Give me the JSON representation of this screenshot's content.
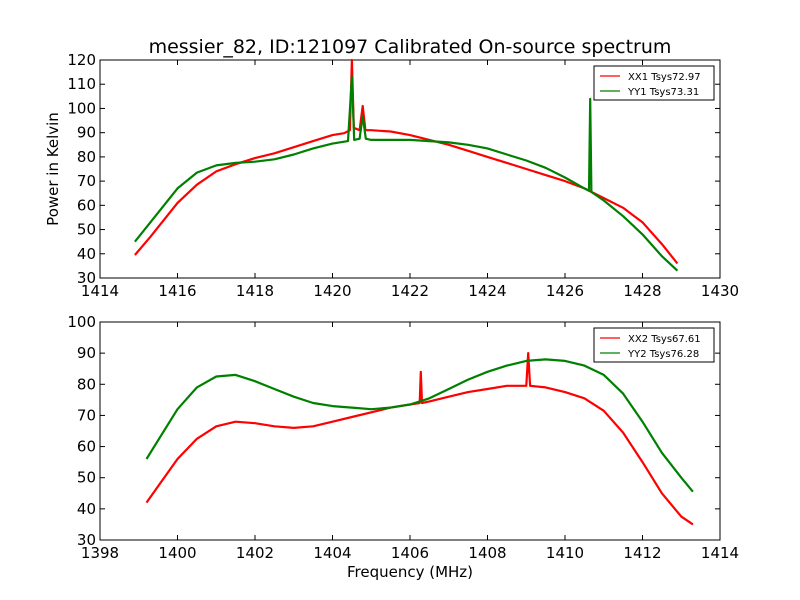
{
  "chart_data": [
    {
      "type": "line",
      "title": "messier_82, ID:121097 Calibrated On-source spectrum",
      "xlabel": "",
      "ylabel": "Power in Kelvin",
      "xlim": [
        1414,
        1430
      ],
      "ylim": [
        30,
        120
      ],
      "xticks": [
        1414,
        1416,
        1418,
        1420,
        1422,
        1424,
        1426,
        1428,
        1430
      ],
      "yticks": [
        30,
        40,
        50,
        60,
        70,
        80,
        90,
        100,
        110,
        120
      ],
      "grid": false,
      "legend_position": "top-right",
      "series": [
        {
          "name": "XX1 Tsys72.97",
          "color": "#ff0000",
          "x": [
            1414.9,
            1415.3,
            1415.7,
            1416.0,
            1416.5,
            1417.0,
            1417.5,
            1418.0,
            1418.5,
            1419.0,
            1419.5,
            1420.0,
            1420.3,
            1420.45,
            1420.5,
            1420.55,
            1420.7,
            1420.78,
            1420.85,
            1421.0,
            1421.5,
            1422.0,
            1422.5,
            1423.0,
            1423.5,
            1424.0,
            1424.5,
            1425.0,
            1425.5,
            1426.0,
            1426.5,
            1427.0,
            1427.5,
            1428.0,
            1428.5,
            1428.9
          ],
          "y": [
            39.5,
            47,
            55,
            61,
            68.5,
            74,
            77,
            79.5,
            81.5,
            84,
            86.5,
            89,
            89.8,
            91,
            120,
            92,
            91,
            101,
            91,
            91,
            90.5,
            89,
            87,
            85,
            82.5,
            80,
            77.5,
            75,
            72.5,
            70,
            67,
            63,
            59,
            53,
            44,
            36
          ]
        },
        {
          "name": "YY1 Tsys73.31",
          "color": "#008000",
          "x": [
            1414.9,
            1415.3,
            1415.7,
            1416.0,
            1416.5,
            1417.0,
            1417.5,
            1418.0,
            1418.5,
            1419.0,
            1419.5,
            1420.0,
            1420.4,
            1420.5,
            1420.56,
            1420.7,
            1420.78,
            1420.86,
            1421.0,
            1421.5,
            1422.0,
            1422.5,
            1423.0,
            1423.5,
            1424.0,
            1424.5,
            1425.0,
            1425.5,
            1426.0,
            1426.5,
            1426.62,
            1426.65,
            1426.68,
            1427.0,
            1427.5,
            1428.0,
            1428.5,
            1428.9
          ],
          "y": [
            45,
            53,
            61,
            67,
            73.5,
            76.5,
            77.5,
            78,
            79,
            81,
            83.5,
            85.5,
            86.5,
            113,
            87,
            87.5,
            97,
            87.5,
            87,
            87,
            87,
            86.5,
            86,
            85,
            83.5,
            81,
            78.5,
            75.5,
            71.5,
            67,
            66,
            104,
            65.5,
            62,
            55.5,
            48,
            39,
            33
          ]
        }
      ]
    },
    {
      "type": "line",
      "title": "",
      "xlabel": "Frequency (MHz)",
      "ylabel": "",
      "xlim": [
        1398,
        1414
      ],
      "ylim": [
        30,
        100
      ],
      "xticks": [
        1398,
        1400,
        1402,
        1404,
        1406,
        1408,
        1410,
        1412,
        1414
      ],
      "yticks": [
        30,
        40,
        50,
        60,
        70,
        80,
        90,
        100
      ],
      "grid": false,
      "legend_position": "top-right",
      "series": [
        {
          "name": "XX2 Tsys67.61",
          "color": "#ff0000",
          "x": [
            1399.2,
            1399.6,
            1400.0,
            1400.5,
            1401.0,
            1401.5,
            1402.0,
            1402.5,
            1403.0,
            1403.5,
            1404.0,
            1404.5,
            1405.0,
            1405.5,
            1406.0,
            1406.25,
            1406.28,
            1406.31,
            1406.5,
            1407.0,
            1407.5,
            1408.0,
            1408.5,
            1409.0,
            1409.05,
            1409.1,
            1409.5,
            1410.0,
            1410.5,
            1411.0,
            1411.5,
            1412.0,
            1412.5,
            1413.0,
            1413.3
          ],
          "y": [
            42,
            49,
            56,
            62.5,
            66.5,
            68,
            67.5,
            66.5,
            66,
            66.5,
            68,
            69.5,
            71,
            72.5,
            73.5,
            74,
            84,
            74,
            74.5,
            76,
            77.5,
            78.5,
            79.5,
            79.5,
            90,
            79.5,
            79,
            77.5,
            75.5,
            71.5,
            64.5,
            55,
            45,
            37.5,
            35
          ]
        },
        {
          "name": "YY2 Tsys76.28",
          "color": "#008000",
          "x": [
            1399.2,
            1399.6,
            1400.0,
            1400.5,
            1401.0,
            1401.5,
            1402.0,
            1402.5,
            1403.0,
            1403.5,
            1404.0,
            1404.5,
            1405.0,
            1405.5,
            1406.0,
            1406.5,
            1407.0,
            1407.5,
            1408.0,
            1408.5,
            1409.0,
            1409.5,
            1410.0,
            1410.5,
            1411.0,
            1411.5,
            1412.0,
            1412.5,
            1413.0,
            1413.3
          ],
          "y": [
            56,
            64,
            72,
            79,
            82.5,
            83,
            81,
            78.5,
            76,
            74,
            73,
            72.5,
            72,
            72.5,
            73.5,
            75.5,
            78.5,
            81.5,
            84,
            86,
            87.5,
            88,
            87.5,
            86,
            83,
            77,
            68,
            58,
            50,
            45.5
          ]
        }
      ]
    }
  ]
}
